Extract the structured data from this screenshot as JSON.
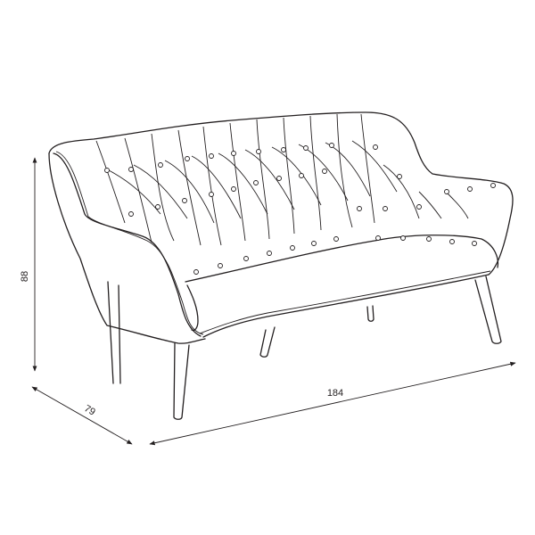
{
  "dimensions": {
    "height": "88",
    "depth": "79",
    "width": "184"
  },
  "colors": {
    "line": "#231f20",
    "background": "#ffffff"
  }
}
